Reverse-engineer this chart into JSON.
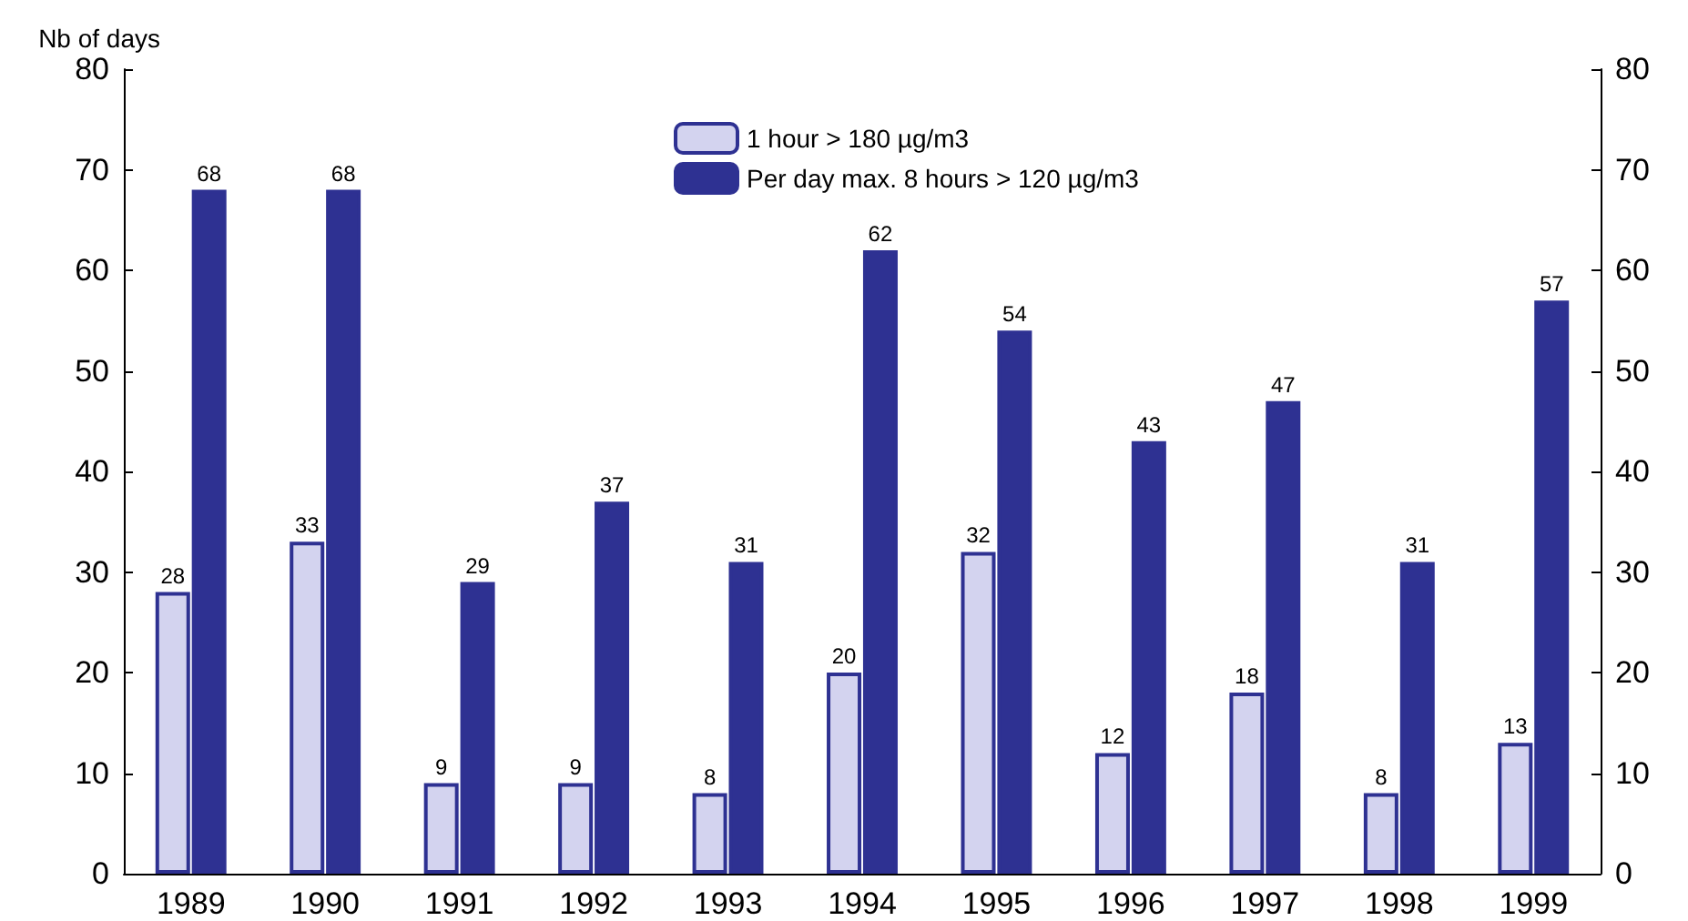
{
  "chart_data": {
    "type": "bar",
    "ylabel": "Nb of days",
    "categories": [
      "1989",
      "1990",
      "1991",
      "1992",
      "1993",
      "1994",
      "1995",
      "1996",
      "1997",
      "1998",
      "1999"
    ],
    "series": [
      {
        "name": "1 hour > 180 µg/m3",
        "color": "#d3d3ef",
        "values": [
          28,
          33,
          9,
          9,
          8,
          20,
          32,
          12,
          18,
          8,
          13
        ]
      },
      {
        "name": "Per day max. 8 hours > 120 µg/m3",
        "color": "#2e3192",
        "values": [
          68,
          68,
          29,
          37,
          31,
          62,
          54,
          43,
          47,
          31,
          57
        ]
      }
    ],
    "ylim": [
      0,
      80
    ],
    "yticks": [
      0,
      10,
      20,
      30,
      40,
      50,
      60,
      70,
      80
    ],
    "y2lim": [
      0,
      80
    ],
    "y2ticks": [
      0,
      10,
      20,
      30,
      40,
      50,
      60,
      70,
      80
    ],
    "data_labels": true,
    "grid": false,
    "legend": "top"
  }
}
